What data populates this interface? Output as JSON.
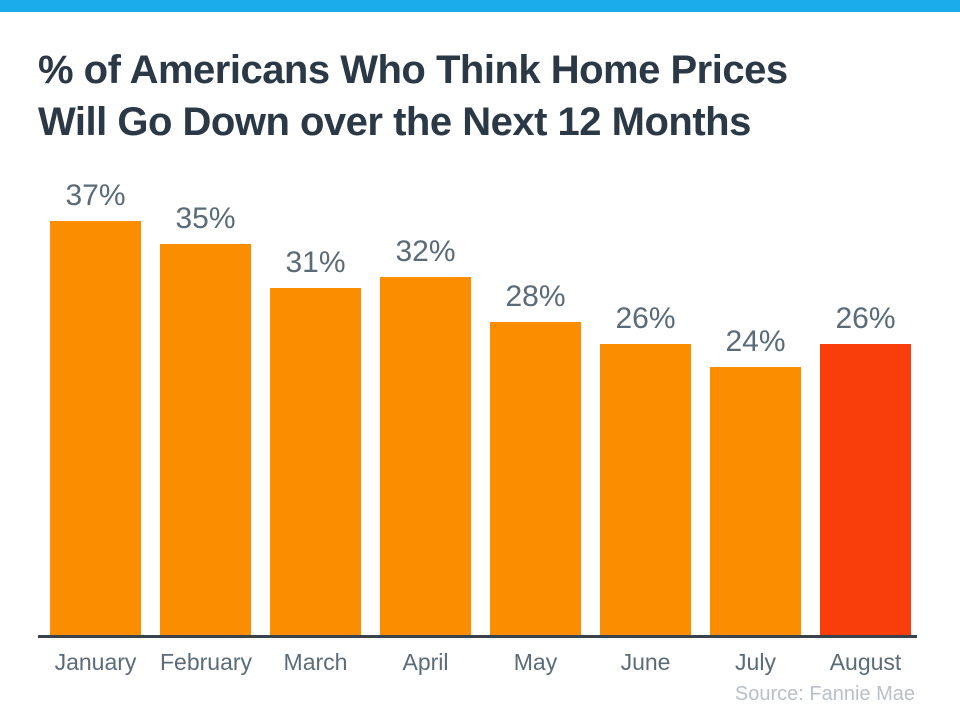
{
  "colors": {
    "top_bar": "#1BACEC",
    "title_text": "#2B3845",
    "label_text": "#5B6B78",
    "axis_line": "#3A424B",
    "source_text": "#B9C0C7",
    "bar_orange": "#FA8D00",
    "bar_red": "#F93E0C"
  },
  "header": {
    "title_line1": "% of Americans Who Think Home Prices",
    "title_line2": "Will Go Down over the Next 12 Months"
  },
  "chart_data": {
    "type": "bar",
    "title": "% of Americans Who Think Home Prices Will Go Down over the Next 12 Months",
    "categories": [
      "January",
      "February",
      "March",
      "April",
      "May",
      "June",
      "July",
      "August"
    ],
    "values": [
      37,
      35,
      31,
      32,
      28,
      26,
      24,
      26
    ],
    "labels": [
      "37%",
      "35%",
      "31%",
      "32%",
      "28%",
      "26%",
      "24%",
      "26%"
    ],
    "unit": "%",
    "xlabel": "",
    "ylabel": "",
    "ylim": [
      0,
      40
    ],
    "grid": false,
    "legend": false,
    "bar_color": "#FA8D00",
    "highlight_index": 7,
    "highlight_category": "August",
    "highlight_color": "#F93E0C",
    "source": "Source: Fannie Mae"
  },
  "footer": {
    "source": "Source: Fannie Mae"
  }
}
